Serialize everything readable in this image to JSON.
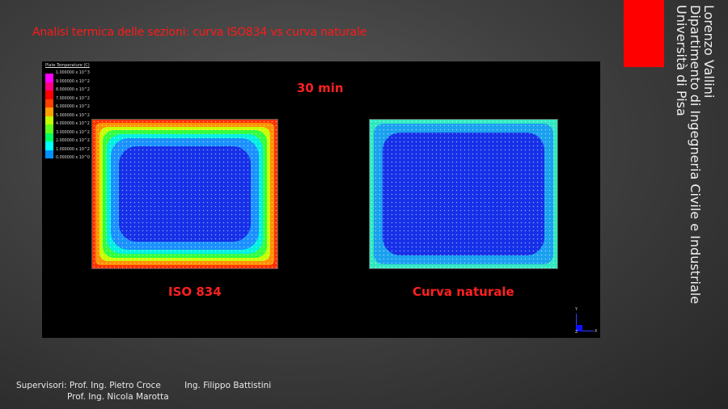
{
  "slide": {
    "title": "Analisi termica delle sezioni: curva ISO834 vs curva naturale",
    "author": [
      "Lorenzo Vallini",
      "Dipartimento di Ingegneria Civile e Industriale",
      "Università di Pisa"
    ],
    "accent_color": "#ff0000"
  },
  "figure": {
    "legend_title": "Plate Temperature  (C)",
    "legend_ticks": [
      "1.000000 x 10^3",
      "9.000000 x 10^2",
      "8.000000 x 10^2",
      "7.000000 x 10^2",
      "6.000000 x 10^2",
      "5.000000 x 10^2",
      "4.000000 x 10^2",
      "3.000000 x 10^2",
      "2.000000 x 10^2",
      "1.000000 x 10^2",
      "0.000000 x 10^0"
    ],
    "legend_colors": [
      "#ff00ff",
      "#ff0080",
      "#ff0000",
      "#ff4000",
      "#ffa000",
      "#c0ff00",
      "#60ff20",
      "#00ff60",
      "#00ffff",
      "#0090ff",
      "#0010ff"
    ],
    "time_label": "30 min",
    "left_label": "ISO 834",
    "right_label": "Curva naturale",
    "axis_labels": {
      "y": "Y",
      "z": "Z",
      "x": "X"
    }
  },
  "footer": {
    "label": "Supervisori:",
    "supervisors": [
      "Prof. Ing. Pietro Croce",
      "Prof. Ing. Nicola Marotta"
    ],
    "co_supervisor": "Ing. Filippo Battistini"
  }
}
